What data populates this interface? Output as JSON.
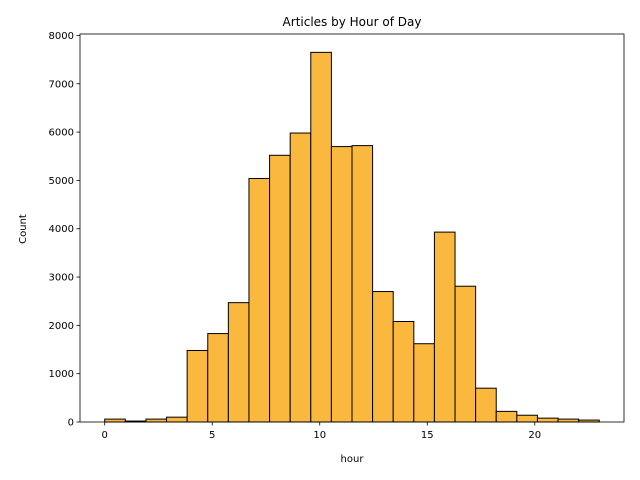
{
  "chart_data": {
    "type": "bar",
    "title": "Articles by Hour of Day",
    "xlabel": "hour",
    "ylabel": "Count",
    "bin_edges": [
      0.0,
      0.958,
      1.917,
      2.875,
      3.833,
      4.792,
      5.75,
      6.708,
      7.667,
      8.625,
      9.583,
      10.542,
      11.5,
      12.458,
      13.417,
      14.375,
      15.333,
      16.292,
      17.25,
      18.208,
      19.167,
      20.125,
      21.083,
      22.042,
      23.0
    ],
    "values": [
      60,
      20,
      60,
      100,
      1480,
      1830,
      2470,
      5040,
      5520,
      5980,
      7650,
      5700,
      5720,
      2700,
      2080,
      1620,
      3930,
      2810,
      700,
      220,
      140,
      80,
      60,
      40
    ],
    "xlim": [
      -1.15,
      24.15
    ],
    "ylim": [
      0,
      8030
    ],
    "xticks": [
      0,
      5,
      10,
      15,
      20
    ],
    "yticks": [
      0,
      1000,
      2000,
      3000,
      4000,
      5000,
      6000,
      7000,
      8000
    ],
    "bar_color": "#fbb83f",
    "edge_color": "#000000",
    "grid": false
  }
}
